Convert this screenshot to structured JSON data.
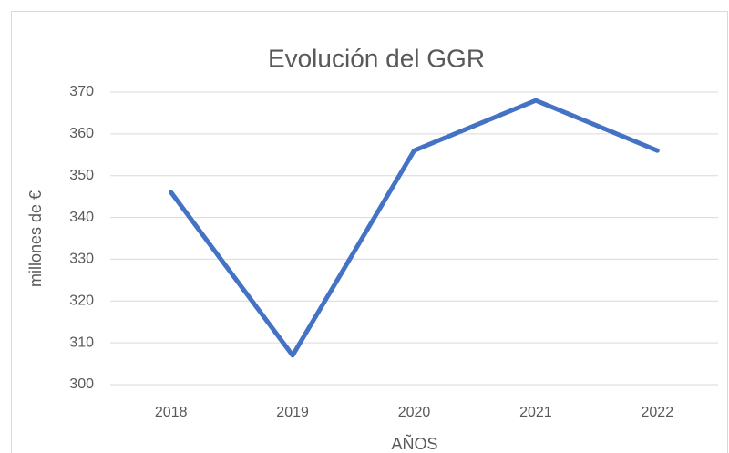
{
  "chart_data": {
    "type": "line",
    "title": "Evolución del GGR",
    "x_label": "AÑOS",
    "y_label": "millones de €",
    "categories": [
      "2018",
      "2019",
      "2020",
      "2021",
      "2022"
    ],
    "series": [
      {
        "name": "GGR",
        "color": "#4472c4",
        "values": [
          346,
          307,
          356,
          368,
          356
        ]
      }
    ],
    "ylim": [
      300,
      370
    ],
    "yticks": [
      300,
      310,
      320,
      330,
      340,
      350,
      360,
      370
    ],
    "grid": true
  }
}
